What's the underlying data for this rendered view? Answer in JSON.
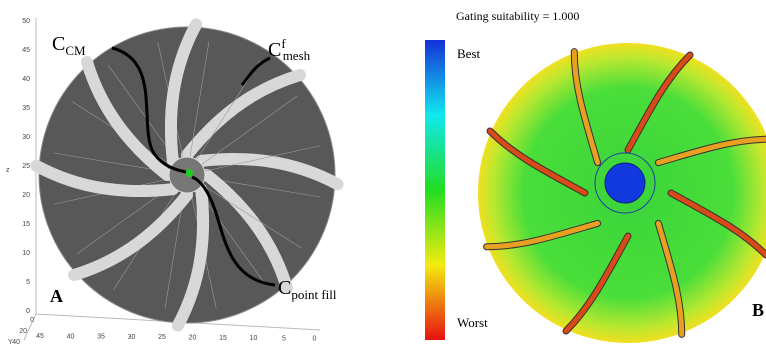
{
  "panel_a": {
    "label": "A",
    "annotations": [
      {
        "base": "C",
        "sub": "CM"
      },
      {
        "base": "C",
        "sup": "f",
        "sub": "mesh"
      },
      {
        "base": "C",
        "sub": "point fill"
      }
    ],
    "z_axis": {
      "label": "z",
      "ticks": [
        50,
        45,
        40,
        35,
        30,
        25,
        20,
        15,
        10,
        5,
        0
      ]
    },
    "x_axis": {
      "ticks": [
        45,
        40,
        35,
        30,
        25,
        20,
        15,
        10,
        5,
        0
      ]
    },
    "y_axis": {
      "label": "Y",
      "ticks": [
        0,
        20,
        40
      ]
    }
  },
  "panel_b": {
    "label": "B",
    "title": "Gating suitability = 1.000",
    "colorbar": {
      "top": "Best",
      "bottom": "Worst"
    }
  }
}
